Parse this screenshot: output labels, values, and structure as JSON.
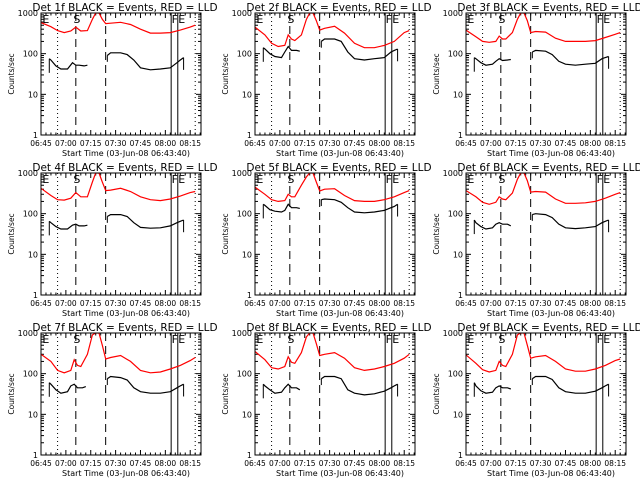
{
  "chart_data": {
    "type": "line",
    "layout": "3x3 grid",
    "xlabel": "Start Time (03-Jun-08 06:43:40)",
    "ylabel": "Counts/sec",
    "yscale": "log",
    "ylim": [
      1,
      1000
    ],
    "ytick_labels": [
      "1",
      "10",
      "100",
      "1000"
    ],
    "xlim_minutes_after_0645": [
      0,
      96.5
    ],
    "xtick_labels": [
      "06:45",
      "07:00",
      "07:15",
      "07:30",
      "07:45",
      "08:00",
      "08:15"
    ],
    "legend": "in title: BLACK = Events, RED = LLD",
    "series_colors": {
      "events": "#000000",
      "lld": "#ff0000"
    },
    "markers": [
      {
        "label": "E",
        "time_min": 10,
        "style": "dotted"
      },
      {
        "label": "S",
        "time_min": 21,
        "style": "dashed"
      },
      {
        "label": "",
        "time_min": 39,
        "style": "dashed"
      },
      {
        "label": "F",
        "time_min": 78.5,
        "style": "solid"
      },
      {
        "label": "E",
        "time_min": 82.5,
        "style": "solid"
      },
      {
        "label": "",
        "time_min": 93,
        "style": "dotted"
      }
    ],
    "marker_top_labels": [
      "E",
      "S",
      "F",
      "E"
    ],
    "panels": [
      {
        "title": "Det 1f BLACK = Events, RED = LLD",
        "lld": {
          "t": [
            0,
            6,
            10,
            14,
            18,
            21,
            24,
            28,
            31,
            33,
            35,
            37,
            39,
            42,
            48,
            54,
            60,
            66,
            72,
            78,
            84,
            90,
            93
          ],
          "v": [
            580,
            460,
            370,
            330,
            360,
            450,
            360,
            370,
            700,
            1000,
            1000,
            700,
            550,
            560,
            590,
            520,
            400,
            320,
            320,
            330,
            380,
            450,
            500
          ]
        },
        "events": {
          "t": [
            5,
            6,
            9,
            12,
            16,
            19,
            21,
            23,
            26,
            28
          ],
          "v": [
            75,
            70,
            50,
            42,
            42,
            60,
            52,
            52,
            50,
            52
          ],
          "t2": [
            40,
            42,
            48,
            52,
            56,
            60,
            66,
            72,
            78,
            82,
            84,
            86
          ],
          "v2": [
            90,
            105,
            105,
            95,
            70,
            45,
            40,
            42,
            45,
            60,
            70,
            80
          ]
        }
      },
      {
        "title": "Det 2f BLACK = Events, RED = LLD",
        "lld": {
          "t": [
            0,
            6,
            10,
            14,
            18,
            20,
            22,
            24,
            28,
            31,
            33,
            35,
            37,
            39,
            42,
            48,
            54,
            60,
            66,
            72,
            78,
            84,
            90,
            93
          ],
          "v": [
            450,
            290,
            180,
            150,
            160,
            290,
            230,
            210,
            290,
            700,
            1000,
            1000,
            650,
            380,
            420,
            470,
            320,
            180,
            140,
            140,
            160,
            200,
            330,
            370
          ]
        },
        "events": {
          "t": [
            5,
            6,
            9,
            12,
            16,
            18,
            20,
            22,
            25,
            27
          ],
          "v": [
            140,
            130,
            100,
            85,
            80,
            110,
            150,
            120,
            120,
            115
          ],
          "t2": [
            40,
            42,
            48,
            52,
            56,
            60,
            66,
            72,
            78,
            82,
            84,
            86
          ],
          "v2": [
            200,
            230,
            230,
            200,
            110,
            75,
            70,
            75,
            80,
            110,
            120,
            130
          ]
        }
      },
      {
        "title": "Det 3f BLACK = Events, RED = LLD",
        "lld": {
          "t": [
            0,
            6,
            10,
            14,
            18,
            20,
            22,
            24,
            28,
            31,
            33,
            35,
            37,
            39,
            42,
            48,
            54,
            60,
            66,
            72,
            78,
            84,
            90,
            93
          ],
          "v": [
            380,
            260,
            200,
            190,
            200,
            270,
            230,
            230,
            330,
            700,
            1000,
            1000,
            650,
            330,
            350,
            340,
            240,
            200,
            200,
            200,
            210,
            250,
            300,
            330
          ]
        },
        "events": {
          "t": [
            5,
            6,
            9,
            12,
            16,
            18,
            20,
            22,
            25,
            27
          ],
          "v": [
            80,
            75,
            60,
            52,
            55,
            65,
            75,
            68,
            70,
            72
          ],
          "t2": [
            40,
            42,
            48,
            52,
            56,
            60,
            66,
            72,
            78,
            82,
            84,
            86
          ],
          "v2": [
            110,
            120,
            115,
            95,
            65,
            55,
            52,
            55,
            58,
            75,
            80,
            85
          ]
        }
      },
      {
        "title": "Det 4f BLACK = Events, RED = LLD",
        "lld": {
          "t": [
            0,
            6,
            10,
            14,
            18,
            21,
            24,
            28,
            31,
            33,
            35,
            37,
            39,
            42,
            48,
            54,
            60,
            66,
            72,
            78,
            84,
            90,
            93
          ],
          "v": [
            420,
            280,
            220,
            215,
            240,
            330,
            260,
            260,
            600,
            1000,
            1000,
            600,
            370,
            380,
            420,
            350,
            260,
            220,
            210,
            230,
            270,
            330,
            350
          ]
        },
        "events": {
          "t": [
            5,
            6,
            9,
            12,
            16,
            19,
            21,
            23,
            26,
            28
          ],
          "v": [
            65,
            60,
            48,
            42,
            42,
            52,
            55,
            50,
            50,
            52
          ],
          "t2": [
            40,
            42,
            48,
            52,
            56,
            60,
            66,
            72,
            78,
            82,
            84,
            86
          ],
          "v2": [
            85,
            95,
            95,
            85,
            60,
            46,
            44,
            45,
            50,
            60,
            65,
            70
          ]
        }
      },
      {
        "title": "Det 5f BLACK = Events, RED = LLD",
        "lld": {
          "t": [
            0,
            6,
            10,
            14,
            18,
            20,
            22,
            24,
            28,
            31,
            33,
            35,
            37,
            39,
            42,
            48,
            54,
            60,
            66,
            72,
            78,
            84,
            90,
            93
          ],
          "v": [
            450,
            300,
            220,
            200,
            210,
            300,
            260,
            260,
            500,
            800,
            1000,
            1000,
            600,
            360,
            400,
            410,
            280,
            210,
            200,
            200,
            220,
            260,
            330,
            370
          ]
        },
        "events": {
          "t": [
            5,
            6,
            9,
            12,
            16,
            18,
            20,
            22,
            25,
            27
          ],
          "v": [
            170,
            160,
            125,
            115,
            110,
            120,
            170,
            140,
            140,
            135
          ],
          "t2": [
            40,
            42,
            48,
            52,
            56,
            60,
            66,
            72,
            78,
            82,
            84,
            86
          ],
          "v2": [
            220,
            230,
            220,
            190,
            140,
            110,
            105,
            110,
            120,
            140,
            150,
            170
          ]
        }
      },
      {
        "title": "Det 6f BLACK = Events, RED = LLD",
        "lld": {
          "t": [
            0,
            6,
            10,
            14,
            18,
            20,
            22,
            24,
            28,
            31,
            33,
            35,
            37,
            39,
            42,
            48,
            54,
            60,
            66,
            72,
            78,
            84,
            90,
            93
          ],
          "v": [
            370,
            260,
            190,
            170,
            190,
            260,
            230,
            220,
            320,
            700,
            1000,
            1000,
            650,
            340,
            350,
            340,
            230,
            180,
            180,
            185,
            200,
            240,
            300,
            330
          ]
        },
        "events": {
          "t": [
            5,
            6,
            9,
            12,
            16,
            18,
            20,
            22,
            25,
            27
          ],
          "v": [
            70,
            60,
            48,
            42,
            45,
            55,
            60,
            55,
            55,
            50
          ],
          "t2": [
            40,
            42,
            48,
            52,
            56,
            60,
            66,
            72,
            78,
            82,
            84,
            86
          ],
          "v2": [
            95,
            100,
            95,
            80,
            55,
            45,
            43,
            45,
            48,
            60,
            65,
            70
          ]
        }
      },
      {
        "title": "Det 7f BLACK = Events, RED = LLD",
        "lld": {
          "t": [
            0,
            6,
            10,
            14,
            18,
            20,
            22,
            24,
            28,
            31,
            33,
            35,
            37,
            39,
            42,
            48,
            54,
            60,
            66,
            72,
            78,
            84,
            90,
            93
          ],
          "v": [
            300,
            200,
            120,
            105,
            120,
            220,
            160,
            150,
            300,
            900,
            1000,
            1000,
            500,
            230,
            250,
            280,
            200,
            120,
            105,
            110,
            130,
            160,
            210,
            250
          ]
        },
        "events": {
          "t": [
            5,
            6,
            9,
            12,
            16,
            18,
            20,
            22,
            25,
            27
          ],
          "v": [
            60,
            55,
            40,
            33,
            36,
            50,
            55,
            45,
            45,
            48
          ],
          "t2": [
            40,
            42,
            48,
            52,
            56,
            60,
            66,
            72,
            78,
            82,
            84,
            86
          ],
          "v2": [
            75,
            85,
            80,
            70,
            45,
            36,
            33,
            33,
            36,
            45,
            50,
            55
          ]
        }
      },
      {
        "title": "Det 8f BLACK = Events, RED = LLD",
        "lld": {
          "t": [
            0,
            6,
            10,
            14,
            18,
            20,
            22,
            24,
            28,
            31,
            33,
            35,
            37,
            39,
            42,
            48,
            54,
            60,
            66,
            72,
            78,
            84,
            90,
            93
          ],
          "v": [
            350,
            220,
            140,
            130,
            150,
            260,
            190,
            180,
            330,
            800,
            1000,
            1000,
            550,
            280,
            300,
            330,
            240,
            140,
            120,
            130,
            150,
            180,
            240,
            300
          ]
        },
        "events": {
          "t": [
            5,
            6,
            9,
            12,
            16,
            18,
            20,
            22,
            25,
            27
          ],
          "v": [
            55,
            50,
            40,
            33,
            35,
            45,
            55,
            45,
            45,
            40
          ],
          "t2": [
            40,
            42,
            48,
            52,
            56,
            60,
            66,
            72,
            78,
            82,
            84,
            86
          ],
          "v2": [
            75,
            85,
            85,
            75,
            40,
            33,
            30,
            32,
            37,
            45,
            50,
            55
          ]
        }
      },
      {
        "title": "Det 9f BLACK = Events, RED = LLD",
        "lld": {
          "t": [
            0,
            6,
            10,
            14,
            18,
            20,
            22,
            24,
            28,
            31,
            33,
            35,
            37,
            39,
            42,
            48,
            54,
            60,
            66,
            72,
            78,
            84,
            90,
            93
          ],
          "v": [
            290,
            180,
            125,
            110,
            120,
            200,
            160,
            150,
            300,
            900,
            1000,
            1000,
            500,
            240,
            260,
            280,
            200,
            130,
            115,
            115,
            130,
            160,
            210,
            230
          ]
        },
        "events": {
          "t": [
            5,
            6,
            9,
            12,
            16,
            18,
            20,
            22,
            25,
            27
          ],
          "v": [
            60,
            50,
            38,
            33,
            35,
            45,
            50,
            45,
            45,
            42
          ],
          "t2": [
            40,
            42,
            48,
            52,
            56,
            60,
            66,
            72,
            78,
            82,
            84,
            86
          ],
          "v2": [
            75,
            85,
            85,
            72,
            45,
            36,
            33,
            33,
            37,
            45,
            50,
            55
          ]
        }
      }
    ]
  }
}
